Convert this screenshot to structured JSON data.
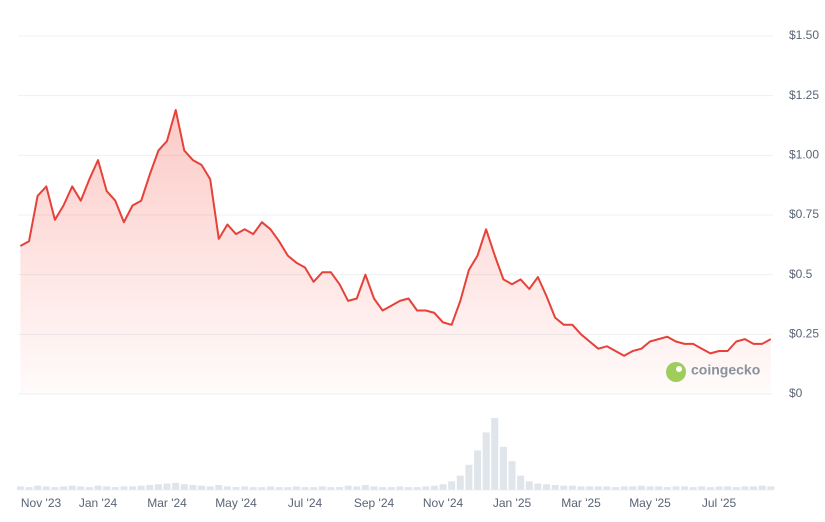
{
  "chart_data": {
    "type": "line",
    "categories": [
      null,
      "Nov '23",
      null,
      null,
      null,
      null,
      null,
      null,
      null,
      "Jan '24",
      null,
      null,
      null,
      null,
      null,
      null,
      null,
      "Mar '24",
      null,
      null,
      null,
      null,
      null,
      null,
      null,
      "May '24",
      null,
      null,
      null,
      null,
      null,
      null,
      null,
      "Jul '24",
      null,
      null,
      null,
      null,
      null,
      null,
      null,
      "Sep '24",
      null,
      null,
      null,
      null,
      null,
      null,
      null,
      "Nov '24",
      null,
      null,
      null,
      null,
      null,
      null,
      null,
      "Jan '25",
      null,
      null,
      null,
      null,
      null,
      null,
      null,
      "Mar '25",
      null,
      null,
      null,
      null,
      null,
      null,
      null,
      "May '25",
      null,
      null,
      null,
      null,
      null,
      null,
      null,
      "Jul '25",
      null,
      null,
      null,
      null,
      null,
      null
    ],
    "values": [
      0.62,
      0.64,
      0.83,
      0.87,
      0.73,
      0.79,
      0.87,
      0.81,
      0.9,
      0.98,
      0.85,
      0.81,
      0.72,
      0.79,
      0.81,
      0.92,
      1.02,
      1.06,
      1.19,
      1.02,
      0.98,
      0.96,
      0.9,
      0.65,
      0.71,
      0.67,
      0.69,
      0.67,
      0.72,
      0.69,
      0.64,
      0.58,
      0.55,
      0.53,
      0.47,
      0.51,
      0.51,
      0.46,
      0.39,
      0.4,
      0.5,
      0.4,
      0.35,
      0.37,
      0.39,
      0.4,
      0.35,
      0.35,
      0.34,
      0.3,
      0.29,
      0.39,
      0.52,
      0.58,
      0.69,
      0.58,
      0.48,
      0.46,
      0.48,
      0.44,
      0.49,
      0.41,
      0.32,
      0.29,
      0.29,
      0.25,
      0.22,
      0.19,
      0.2,
      0.18,
      0.16,
      0.18,
      0.19,
      0.22,
      0.23,
      0.24,
      0.22,
      0.21,
      0.21,
      0.19,
      0.17,
      0.18,
      0.18,
      0.22,
      0.23,
      0.21,
      0.21,
      0.23
    ],
    "color": "#e5423a",
    "volume": [
      5,
      4,
      6,
      5,
      4,
      5,
      6,
      5,
      4,
      6,
      5,
      4,
      5,
      5,
      6,
      7,
      8,
      9,
      10,
      8,
      7,
      6,
      5,
      7,
      5,
      4,
      5,
      4,
      4,
      5,
      4,
      4,
      5,
      4,
      4,
      5,
      4,
      4,
      6,
      5,
      7,
      5,
      4,
      4,
      5,
      4,
      4,
      5,
      6,
      8,
      12,
      20,
      35,
      55,
      80,
      100,
      60,
      40,
      20,
      12,
      9,
      8,
      7,
      6,
      6,
      5,
      5,
      5,
      5,
      4,
      5,
      5,
      6,
      5,
      5,
      4,
      5,
      5,
      4,
      5,
      4,
      5,
      5,
      4,
      5,
      5,
      6,
      5
    ],
    "volume_color": "#dfe5ea",
    "ylim": [
      0,
      1.5
    ],
    "yticks": [
      {
        "value": 0,
        "label": "$0"
      },
      {
        "value": 0.25,
        "label": "$0.25"
      },
      {
        "value": 0.5,
        "label": "$0.5"
      },
      {
        "value": 0.75,
        "label": "$0.75"
      },
      {
        "value": 1.0,
        "label": "$1.00"
      },
      {
        "value": 1.25,
        "label": "$1.25"
      },
      {
        "value": 1.5,
        "label": "$1.50"
      }
    ],
    "grid": true,
    "watermark": "coingecko"
  }
}
